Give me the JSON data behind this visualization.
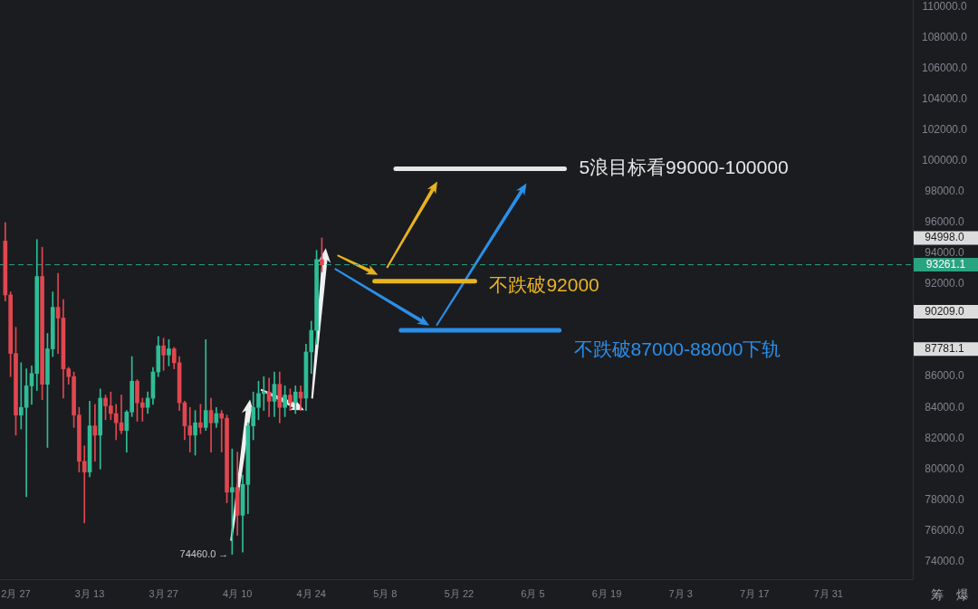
{
  "chart_data": {
    "type": "candlestick",
    "xlim": [
      "--02-24",
      "--08-16"
    ],
    "xticks": [
      {
        "value": "--02-27",
        "label": "2月 27"
      },
      {
        "value": "--03-13",
        "label": "3月 13"
      },
      {
        "value": "--03-27",
        "label": "3月 27"
      },
      {
        "value": "--04-10",
        "label": "4月 10"
      },
      {
        "value": "--04-24",
        "label": "4月 24"
      },
      {
        "value": "--05-08",
        "label": "5月 8"
      },
      {
        "value": "--05-22",
        "label": "5月 22"
      },
      {
        "value": "--06-05",
        "label": "6月 5"
      },
      {
        "value": "--06-19",
        "label": "6月 19"
      },
      {
        "value": "--07-03",
        "label": "7月 3"
      },
      {
        "value": "--07-17",
        "label": "7月 17"
      },
      {
        "value": "--07-31",
        "label": "7月 31"
      }
    ],
    "ylim": [
      72850,
      110450
    ],
    "yticks": [
      {
        "value": 74000,
        "label": "74000.0"
      },
      {
        "value": 76000,
        "label": "76000.0"
      },
      {
        "value": 78000,
        "label": "78000.0"
      },
      {
        "value": 80000,
        "label": "80000.0"
      },
      {
        "value": 82000,
        "label": "82000.0"
      },
      {
        "value": 84000,
        "label": "84000.0"
      },
      {
        "value": 86000,
        "label": "86000.0"
      },
      {
        "value": 87781.1,
        "label": "87781.1"
      },
      {
        "value": 90209,
        "label": "90209.0"
      },
      {
        "value": 92000,
        "label": "92000.0"
      },
      {
        "value": 94000,
        "label": "94000.0"
      },
      {
        "value": 94998,
        "label": "94998.0"
      },
      {
        "value": 96000,
        "label": "96000.0"
      },
      {
        "value": 98000,
        "label": "98000.0"
      },
      {
        "value": 100000,
        "label": "100000.0"
      },
      {
        "value": 102000,
        "label": "102000.0"
      },
      {
        "value": 104000,
        "label": "104000.0"
      },
      {
        "value": 106000,
        "label": "106000.0"
      },
      {
        "value": 108000,
        "label": "108000.0"
      },
      {
        "value": 110000,
        "label": "110000.0"
      }
    ],
    "series": [
      {
        "type": "candlestick",
        "x": [
          "--02-25",
          "--02-26",
          "--02-27",
          "--02-28",
          "--03-01",
          "--03-02",
          "--03-03",
          "--03-04",
          "--03-05",
          "--03-06",
          "--03-07",
          "--03-08",
          "--03-09",
          "--03-10",
          "--03-11",
          "--03-12",
          "--03-13",
          "--03-14",
          "--03-15",
          "--03-16",
          "--03-17",
          "--03-18",
          "--03-19",
          "--03-20",
          "--03-21",
          "--03-22",
          "--03-23",
          "--03-24",
          "--03-25",
          "--03-26",
          "--03-27",
          "--03-28",
          "--03-29",
          "--03-30",
          "--03-31",
          "--04-01",
          "--04-02",
          "--04-03",
          "--04-04",
          "--04-05",
          "--04-06",
          "--04-07",
          "--04-08",
          "--04-09",
          "--04-10",
          "--04-11",
          "--04-12",
          "--04-13",
          "--04-14",
          "--04-15",
          "--04-16",
          "--04-17",
          "--04-18",
          "--04-19",
          "--04-20",
          "--04-21",
          "--04-22",
          "--04-23",
          "--04-24",
          "--04-25",
          "--04-26"
        ],
        "ohlc": [
          [
            94800,
            96000,
            90900,
            91300
          ],
          [
            91300,
            91500,
            86000,
            87500
          ],
          [
            87500,
            89200,
            82200,
            83500
          ],
          [
            83500,
            86900,
            82600,
            84000
          ],
          [
            84000,
            86500,
            78200,
            85400
          ],
          [
            85400,
            86700,
            84200,
            86200
          ],
          [
            86200,
            94900,
            85100,
            92500
          ],
          [
            92500,
            94400,
            84500,
            85500
          ],
          [
            85500,
            88800,
            81400,
            87800
          ],
          [
            87800,
            91500,
            87300,
            90500
          ],
          [
            90500,
            92700,
            87500,
            89800
          ],
          [
            89800,
            91000,
            84600,
            86500
          ],
          [
            86500,
            86600,
            85500,
            86000
          ],
          [
            86000,
            86300,
            82700,
            83500
          ],
          [
            83500,
            84000,
            79800,
            80500
          ],
          [
            80500,
            81500,
            76500,
            79800
          ],
          [
            79800,
            84400,
            79500,
            82800
          ],
          [
            82800,
            84200,
            80500,
            82200
          ],
          [
            82200,
            85200,
            80000,
            84600
          ],
          [
            84600,
            84800,
            83200,
            84100
          ],
          [
            84100,
            85000,
            83200,
            83600
          ],
          [
            83600,
            84200,
            81900,
            83000
          ],
          [
            83000,
            84800,
            82300,
            82500
          ],
          [
            82500,
            83800,
            81100,
            83700
          ],
          [
            83700,
            87300,
            83400,
            85700
          ],
          [
            85700,
            85800,
            83100,
            84300
          ],
          [
            84300,
            84600,
            83100,
            84000
          ],
          [
            84000,
            85000,
            83600,
            84600
          ],
          [
            84600,
            86600,
            84200,
            86300
          ],
          [
            86300,
            88600,
            86000,
            88000
          ],
          [
            88000,
            88500,
            86400,
            87400
          ],
          [
            87400,
            88400,
            86700,
            87800
          ],
          [
            87800,
            87900,
            86500,
            86900
          ],
          [
            86900,
            87300,
            83800,
            84300
          ],
          [
            84300,
            84400,
            81900,
            82800
          ],
          [
            82800,
            84000,
            81100,
            82200
          ],
          [
            82200,
            83800,
            80900,
            83000
          ],
          [
            83000,
            84200,
            82300,
            82700
          ],
          [
            82700,
            88400,
            82500,
            83800
          ],
          [
            83800,
            84600,
            81100,
            83000
          ],
          [
            83000,
            84000,
            82700,
            83600
          ],
          [
            83600,
            83800,
            81100,
            83300
          ],
          [
            83300,
            83500,
            77800,
            78500
          ],
          [
            78500,
            81300,
            74460,
            78800
          ],
          [
            78800,
            81100,
            75700,
            77000
          ],
          [
            77000,
            79600,
            74600,
            79000
          ],
          [
            79000,
            83000,
            77100,
            82800
          ],
          [
            82800,
            85000,
            81900,
            84000
          ],
          [
            84000,
            85700,
            83200,
            84900
          ],
          [
            84900,
            86000,
            83800,
            85000
          ],
          [
            85000,
            85900,
            83400,
            84400
          ],
          [
            84400,
            86300,
            83400,
            85500
          ],
          [
            85500,
            86300,
            83000,
            84000
          ],
          [
            84000,
            85400,
            83400,
            84800
          ],
          [
            84800,
            85200,
            83800,
            84300
          ],
          [
            84300,
            85400,
            83600,
            85000
          ],
          [
            85000,
            85400,
            83800,
            84600
          ],
          [
            84600,
            88100,
            83800,
            87600
          ],
          [
            87600,
            89600,
            86200,
            89000
          ],
          [
            89000,
            94200,
            88100,
            93600
          ],
          [
            93600,
            94998,
            92800,
            93261.1
          ]
        ],
        "colors": [
          "#e0474f",
          "#e0474f",
          "#e0474f",
          "#2ebd96",
          "#2ebd96",
          "#2ebd96",
          "#2ebd96",
          "#e0474f",
          "#2ebd96",
          "#2ebd96",
          "#e0474f",
          "#e0474f",
          "#e0474f",
          "#e0474f",
          "#e0474f",
          "#e0474f",
          "#2ebd96",
          "#e0474f",
          "#2ebd96",
          "#e0474f",
          "#e0474f",
          "#e0474f",
          "#e0474f",
          "#2ebd96",
          "#2ebd96",
          "#e0474f",
          "#e0474f",
          "#2ebd96",
          "#2ebd96",
          "#2ebd96",
          "#e0474f",
          "#2ebd96",
          "#e0474f",
          "#e0474f",
          "#e0474f",
          "#e0474f",
          "#2ebd96",
          "#e0474f",
          "#2ebd96",
          "#e0474f",
          "#2ebd96",
          "#e0474f",
          "#e0474f",
          "#2ebd96",
          "#e0474f",
          "#2ebd96",
          "#2ebd96",
          "#2ebd96",
          "#2ebd96",
          "#2ebd96",
          "#e0474f",
          "#2ebd96",
          "#e0474f",
          "#2ebd96",
          "#e0474f",
          "#2ebd96",
          "#e0474f",
          "#2ebd96",
          "#2ebd96",
          "#2ebd96",
          "#e0474f"
        ]
      },
      {
        "type": "line",
        "name": "5浪目标看99000-100000",
        "color": "#e6e6e6",
        "x": [
          "--05-10",
          "--06-11"
        ],
        "values": [
          99500,
          99500
        ]
      },
      {
        "type": "line",
        "name": "不跌破92000",
        "color": "#e9b422",
        "x": [
          "--05-06",
          "--05-25"
        ],
        "values": [
          92200,
          92200
        ]
      },
      {
        "type": "line",
        "name": "不跌破87000-88000下轨",
        "color": "#2a8fe8",
        "x": [
          "--05-11",
          "--06-10"
        ],
        "values": [
          89000,
          89000
        ]
      }
    ],
    "ref_lines": [
      {
        "axis": "y",
        "value": 93261.1,
        "label": "93261.1",
        "color": "#2aa381",
        "line_style": "dashed"
      }
    ],
    "annotations": [
      {
        "text": "74460.0 →",
        "x": "--04-09",
        "y": 74460
      },
      "筹",
      "爆"
    ]
  }
}
